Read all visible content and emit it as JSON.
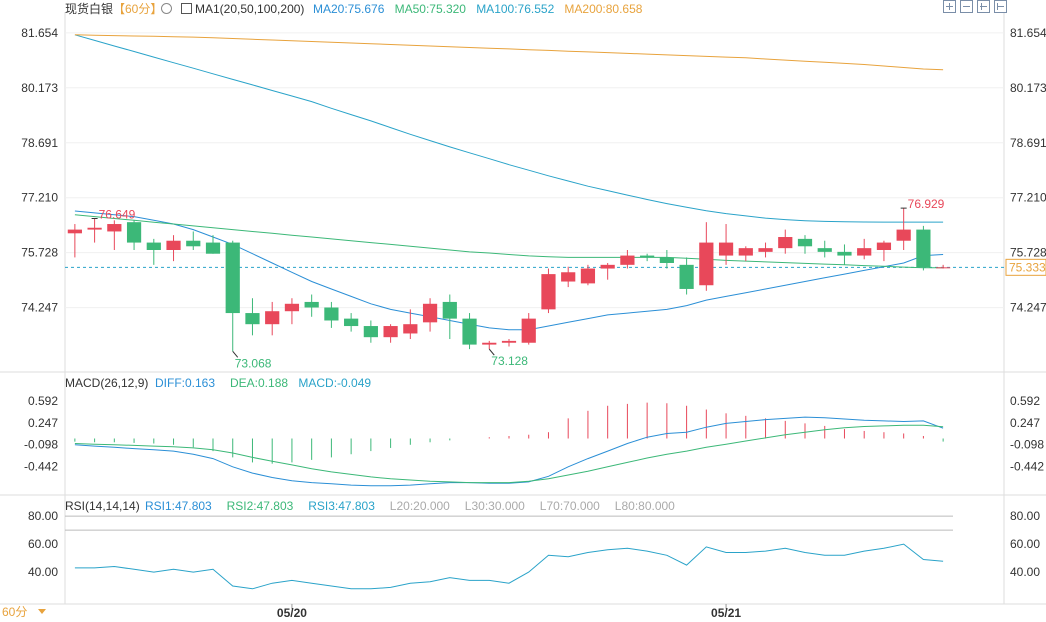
{
  "header": {
    "symbol": "现货白银",
    "period_label": "【60分】",
    "ma_title": "MA1(20,50,100,200)",
    "ma_values": [
      {
        "text": "MA20:75.676",
        "color": "#2b8fd6"
      },
      {
        "text": "MA50:75.320",
        "color": "#3cb878"
      },
      {
        "text": "MA100:76.552",
        "color": "#2aa3c9"
      },
      {
        "text": "MA200:80.658",
        "color": "#e8a33d"
      }
    ]
  },
  "macd_header": {
    "title": "MACD(26,12,9)",
    "items": [
      {
        "text": "DIFF:0.163",
        "color": "#2b8fd6"
      },
      {
        "text": "DEA:0.188",
        "color": "#3cb878"
      },
      {
        "text": "MACD:-0.049",
        "color": "#2aa3c9"
      }
    ]
  },
  "rsi_header": {
    "title": "RSI(14,14,14)",
    "items": [
      {
        "text": "RSI1:47.803",
        "color": "#2b8fd6"
      },
      {
        "text": "RSI2:47.803",
        "color": "#3cb878"
      },
      {
        "text": "RSI3:47.803",
        "color": "#2aa3c9"
      },
      {
        "text": "L20:20.000",
        "color": "#aaaaaa"
      },
      {
        "text": "L30:30.000",
        "color": "#aaaaaa"
      },
      {
        "text": "L70:70.000",
        "color": "#aaaaaa"
      },
      {
        "text": "L80:80.000",
        "color": "#aaaaaa"
      }
    ]
  },
  "footer": {
    "period": "60分"
  },
  "colors": {
    "up": "#e8485a",
    "down": "#3cb878",
    "accent": "#e8a33d"
  },
  "icons": [
    "ma-chart-icon",
    "settings-icon",
    "zoom-in-icon",
    "zoom-out-icon",
    "grid-icon",
    "back-icon"
  ],
  "chart_data": [
    {
      "type": "candlestick",
      "name_label": "现货白银 60分",
      "price_ticks": [
        81.654,
        80.173,
        78.691,
        77.21,
        75.728,
        74.247
      ],
      "ylim": [
        72.7,
        82.0
      ],
      "last_price": 75.333,
      "x_labels": [
        {
          "label": "05/20",
          "index": 11
        },
        {
          "label": "05/21",
          "index": 33
        }
      ],
      "annotations": [
        {
          "text": "76.649",
          "index": 1,
          "price": 76.649,
          "color": "#e8485a"
        },
        {
          "text": "73.068",
          "index": 8,
          "price": 73.068,
          "color": "#3cb878"
        },
        {
          "text": "73.128",
          "index": 21,
          "price": 73.128,
          "color": "#3cb878"
        },
        {
          "text": "76.929",
          "index": 42,
          "price": 76.929,
          "color": "#e8485a"
        }
      ],
      "candles": [
        {
          "o": 76.25,
          "h": 76.5,
          "l": 75.6,
          "c": 76.35
        },
        {
          "o": 76.35,
          "h": 76.649,
          "l": 76.0,
          "c": 76.4
        },
        {
          "o": 76.3,
          "h": 76.6,
          "l": 75.8,
          "c": 76.5
        },
        {
          "o": 76.55,
          "h": 76.6,
          "l": 75.8,
          "c": 76.0
        },
        {
          "o": 76.0,
          "h": 76.1,
          "l": 75.4,
          "c": 75.8
        },
        {
          "o": 75.8,
          "h": 76.2,
          "l": 75.5,
          "c": 76.05
        },
        {
          "o": 76.05,
          "h": 76.3,
          "l": 75.8,
          "c": 75.9
        },
        {
          "o": 76.0,
          "h": 76.2,
          "l": 75.7,
          "c": 75.7
        },
        {
          "o": 76.0,
          "h": 76.05,
          "l": 73.068,
          "c": 74.1
        },
        {
          "o": 74.1,
          "h": 74.5,
          "l": 73.5,
          "c": 73.8
        },
        {
          "o": 73.8,
          "h": 74.4,
          "l": 73.5,
          "c": 74.15
        },
        {
          "o": 74.15,
          "h": 74.5,
          "l": 73.8,
          "c": 74.35
        },
        {
          "o": 74.4,
          "h": 74.6,
          "l": 74.0,
          "c": 74.25
        },
        {
          "o": 74.25,
          "h": 74.4,
          "l": 73.7,
          "c": 73.9
        },
        {
          "o": 73.95,
          "h": 74.1,
          "l": 73.6,
          "c": 73.75
        },
        {
          "o": 73.75,
          "h": 73.9,
          "l": 73.3,
          "c": 73.45
        },
        {
          "o": 73.45,
          "h": 73.8,
          "l": 73.3,
          "c": 73.75
        },
        {
          "o": 73.55,
          "h": 74.2,
          "l": 73.4,
          "c": 73.8
        },
        {
          "o": 73.85,
          "h": 74.5,
          "l": 73.6,
          "c": 74.35
        },
        {
          "o": 74.4,
          "h": 74.6,
          "l": 73.4,
          "c": 73.95
        },
        {
          "o": 73.95,
          "h": 74.1,
          "l": 73.128,
          "c": 73.25
        },
        {
          "o": 73.25,
          "h": 73.35,
          "l": 73.128,
          "c": 73.3
        },
        {
          "o": 73.3,
          "h": 73.4,
          "l": 73.2,
          "c": 73.35
        },
        {
          "o": 73.3,
          "h": 74.1,
          "l": 73.25,
          "c": 73.95
        },
        {
          "o": 74.2,
          "h": 75.3,
          "l": 74.1,
          "c": 75.15
        },
        {
          "o": 74.95,
          "h": 75.35,
          "l": 74.8,
          "c": 75.2
        },
        {
          "o": 74.9,
          "h": 75.4,
          "l": 74.85,
          "c": 75.3
        },
        {
          "o": 75.3,
          "h": 75.45,
          "l": 75.0,
          "c": 75.4
        },
        {
          "o": 75.4,
          "h": 75.8,
          "l": 75.3,
          "c": 75.65
        },
        {
          "o": 75.65,
          "h": 75.7,
          "l": 75.5,
          "c": 75.6
        },
        {
          "o": 75.6,
          "h": 75.8,
          "l": 75.3,
          "c": 75.45
        },
        {
          "o": 75.4,
          "h": 75.6,
          "l": 74.6,
          "c": 74.75
        },
        {
          "o": 74.85,
          "h": 76.55,
          "l": 74.7,
          "c": 76.0
        },
        {
          "o": 75.65,
          "h": 76.5,
          "l": 75.4,
          "c": 76.0
        },
        {
          "o": 75.65,
          "h": 75.9,
          "l": 75.5,
          "c": 75.85
        },
        {
          "o": 75.75,
          "h": 76.0,
          "l": 75.6,
          "c": 75.85
        },
        {
          "o": 75.85,
          "h": 76.35,
          "l": 75.7,
          "c": 76.15
        },
        {
          "o": 76.1,
          "h": 76.2,
          "l": 75.7,
          "c": 75.9
        },
        {
          "o": 75.85,
          "h": 76.05,
          "l": 75.6,
          "c": 75.75
        },
        {
          "o": 75.75,
          "h": 75.95,
          "l": 75.4,
          "c": 75.65
        },
        {
          "o": 75.65,
          "h": 76.1,
          "l": 75.55,
          "c": 75.85
        },
        {
          "o": 75.8,
          "h": 76.05,
          "l": 75.5,
          "c": 76.0
        },
        {
          "o": 76.05,
          "h": 76.929,
          "l": 75.8,
          "c": 76.35
        },
        {
          "o": 76.35,
          "h": 76.45,
          "l": 75.25,
          "c": 75.333
        },
        {
          "o": 75.333,
          "h": 75.4,
          "l": 75.3,
          "c": 75.333
        }
      ],
      "series": [
        {
          "key": "MA20",
          "color": "#2b8fd6",
          "values": [
            76.85,
            76.8,
            76.75,
            76.7,
            76.6,
            76.5,
            76.35,
            76.15,
            75.95,
            75.7,
            75.45,
            75.2,
            74.95,
            74.75,
            74.55,
            74.35,
            74.2,
            74.1,
            74.0,
            73.9,
            73.8,
            73.7,
            73.65,
            73.65,
            73.75,
            73.85,
            73.95,
            74.05,
            74.1,
            74.15,
            74.2,
            74.3,
            74.45,
            74.55,
            74.65,
            74.75,
            74.85,
            74.95,
            75.05,
            75.15,
            75.25,
            75.35,
            75.45,
            75.65,
            75.68
          ]
        },
        {
          "key": "MA50",
          "color": "#3cb878",
          "values": [
            76.75,
            76.7,
            76.65,
            76.6,
            76.55,
            76.5,
            76.45,
            76.4,
            76.35,
            76.3,
            76.25,
            76.2,
            76.15,
            76.1,
            76.05,
            76.0,
            75.95,
            75.9,
            75.85,
            75.8,
            75.75,
            75.72,
            75.68,
            75.64,
            75.62,
            75.6,
            75.6,
            75.6,
            75.6,
            75.6,
            75.6,
            75.58,
            75.55,
            75.52,
            75.5,
            75.48,
            75.46,
            75.44,
            75.42,
            75.4,
            75.38,
            75.36,
            75.34,
            75.32,
            75.32
          ]
        },
        {
          "key": "MA100",
          "color": "#2aa3c9",
          "values": [
            81.6,
            81.45,
            81.3,
            81.15,
            81.0,
            80.85,
            80.7,
            80.55,
            80.4,
            80.25,
            80.1,
            79.95,
            79.8,
            79.62,
            79.45,
            79.28,
            79.1,
            78.92,
            78.75,
            78.58,
            78.42,
            78.26,
            78.1,
            77.95,
            77.8,
            77.66,
            77.52,
            77.4,
            77.28,
            77.16,
            77.05,
            76.95,
            76.86,
            76.78,
            76.72,
            76.66,
            76.62,
            76.59,
            76.57,
            76.56,
            76.555,
            76.553,
            76.552,
            76.552,
            76.552
          ]
        },
        {
          "key": "MA200",
          "color": "#e8a33d",
          "values": [
            81.6,
            81.59,
            81.58,
            81.57,
            81.56,
            81.55,
            81.54,
            81.52,
            81.5,
            81.48,
            81.46,
            81.44,
            81.42,
            81.4,
            81.38,
            81.36,
            81.34,
            81.32,
            81.3,
            81.28,
            81.26,
            81.24,
            81.22,
            81.2,
            81.18,
            81.16,
            81.14,
            81.12,
            81.1,
            81.08,
            81.06,
            81.04,
            81.02,
            81.0,
            80.98,
            80.95,
            80.92,
            80.89,
            80.86,
            80.83,
            80.8,
            80.76,
            80.72,
            80.68,
            80.658
          ]
        }
      ]
    },
    {
      "type": "macd",
      "name_label": "MACD(26,12,9)",
      "ticks": [
        0.592,
        0.247,
        -0.098,
        -0.442
      ],
      "ylim": [
        -0.85,
        0.85
      ],
      "hist": [
        -0.05,
        -0.06,
        -0.06,
        -0.07,
        -0.08,
        -0.1,
        -0.14,
        -0.2,
        -0.3,
        -0.38,
        -0.4,
        -0.38,
        -0.34,
        -0.3,
        -0.25,
        -0.2,
        -0.15,
        -0.1,
        -0.06,
        -0.03,
        0.0,
        0.02,
        0.04,
        0.06,
        0.1,
        0.32,
        0.44,
        0.52,
        0.55,
        0.57,
        0.56,
        0.52,
        0.46,
        0.4,
        0.36,
        0.32,
        0.28,
        0.24,
        0.2,
        0.15,
        0.12,
        0.1,
        0.08,
        0.04,
        -0.049
      ],
      "series": [
        {
          "key": "DIFF",
          "color": "#2b8fd6",
          "values": [
            -0.1,
            -0.12,
            -0.14,
            -0.16,
            -0.18,
            -0.2,
            -0.25,
            -0.32,
            -0.45,
            -0.55,
            -0.62,
            -0.67,
            -0.7,
            -0.72,
            -0.74,
            -0.75,
            -0.75,
            -0.74,
            -0.72,
            -0.7,
            -0.7,
            -0.71,
            -0.71,
            -0.69,
            -0.6,
            -0.45,
            -0.32,
            -0.2,
            -0.08,
            0.02,
            0.08,
            0.1,
            0.18,
            0.24,
            0.27,
            0.3,
            0.32,
            0.34,
            0.33,
            0.31,
            0.29,
            0.28,
            0.27,
            0.28,
            0.163
          ]
        },
        {
          "key": "DEA",
          "color": "#3cb878",
          "values": [
            -0.08,
            -0.09,
            -0.1,
            -0.11,
            -0.12,
            -0.13,
            -0.15,
            -0.18,
            -0.23,
            -0.3,
            -0.36,
            -0.42,
            -0.48,
            -0.53,
            -0.57,
            -0.61,
            -0.64,
            -0.66,
            -0.68,
            -0.69,
            -0.7,
            -0.7,
            -0.7,
            -0.68,
            -0.64,
            -0.58,
            -0.52,
            -0.45,
            -0.38,
            -0.31,
            -0.25,
            -0.2,
            -0.14,
            -0.09,
            -0.04,
            0.01,
            0.06,
            0.1,
            0.14,
            0.17,
            0.19,
            0.2,
            0.21,
            0.21,
            0.188
          ]
        }
      ]
    },
    {
      "type": "rsi",
      "name_label": "RSI(14,14,14)",
      "ticks": [
        80.0,
        60.0,
        40.0
      ],
      "ylim": [
        20,
        88
      ],
      "ref_lines": [
        80.0,
        70.0
      ],
      "series": [
        {
          "key": "RSI1",
          "color": "#2aa3c9",
          "values": [
            43,
            43,
            44,
            42,
            40,
            42,
            40,
            42,
            30,
            28,
            32,
            34,
            32,
            30,
            28,
            28,
            29,
            32,
            33,
            36,
            34,
            34,
            32,
            40,
            52,
            51,
            54,
            56,
            57,
            55,
            52,
            45,
            58,
            54,
            54,
            55,
            57,
            54,
            52,
            52,
            55,
            57,
            60,
            49,
            47.8
          ]
        }
      ]
    }
  ]
}
